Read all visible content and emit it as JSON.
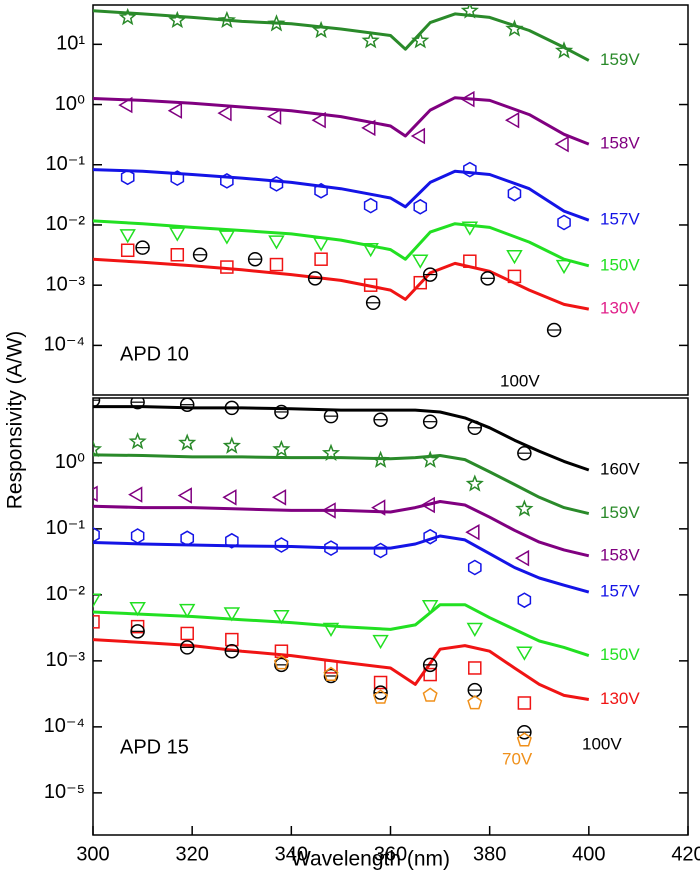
{
  "chart_data": [
    {
      "type": "line",
      "ylabel": "Responsivity (A/W)",
      "xlim": [
        300,
        420
      ],
      "ylim": [
        1.5e-05,
        45
      ],
      "log_y": true,
      "yticks": [
        {
          "value": 0.0001,
          "label": "10⁻⁴"
        },
        {
          "value": 0.001,
          "label": "10⁻³"
        },
        {
          "value": 0.01,
          "label": "10⁻²"
        },
        {
          "value": 0.1,
          "label": "10⁻¹"
        },
        {
          "value": 1,
          "label": "10⁰"
        },
        {
          "value": 10,
          "label": "10¹"
        }
      ],
      "annotation": "APD 10",
      "series": [
        {
          "name": "159V",
          "color": "#2a8a2a",
          "marker": "star",
          "x": [
            300,
            310,
            320,
            330,
            340,
            350,
            360,
            363,
            368,
            373,
            380,
            388,
            395,
            400
          ],
          "values": [
            36,
            32,
            28,
            24,
            22,
            18,
            14,
            8.3,
            23,
            32,
            28,
            17,
            8.9,
            5.4
          ],
          "points_x": [
            307,
            317,
            327,
            337,
            346,
            356,
            366,
            376,
            385,
            395
          ],
          "points": [
            28,
            25,
            25,
            22,
            17,
            11.5,
            11.5,
            36,
            18,
            7.8
          ]
        },
        {
          "name": "158V",
          "color": "#800080",
          "marker": "tri-left",
          "x": [
            300,
            310,
            320,
            330,
            340,
            350,
            360,
            363,
            368,
            373,
            380,
            388,
            395,
            400
          ],
          "values": [
            1.26,
            1.17,
            1.05,
            0.91,
            0.79,
            0.63,
            0.44,
            0.3,
            0.81,
            1.3,
            1.17,
            0.68,
            0.32,
            0.22
          ],
          "points_x": [
            307,
            317,
            327,
            337,
            346,
            356,
            366,
            376,
            385,
            395
          ],
          "points": [
            0.98,
            0.79,
            0.72,
            0.63,
            0.55,
            0.41,
            0.3,
            1.23,
            0.55,
            0.22
          ]
        },
        {
          "name": "157V",
          "color": "#1414e6",
          "marker": "hexagon",
          "x": [
            300,
            310,
            320,
            330,
            340,
            350,
            360,
            363,
            368,
            373,
            380,
            388,
            395,
            400
          ],
          "values": [
            0.083,
            0.078,
            0.069,
            0.06,
            0.051,
            0.04,
            0.028,
            0.02,
            0.051,
            0.078,
            0.069,
            0.04,
            0.017,
            0.012
          ],
          "points_x": [
            307,
            317,
            327,
            337,
            346,
            356,
            366,
            376,
            385,
            395
          ],
          "points": [
            0.062,
            0.06,
            0.054,
            0.048,
            0.037,
            0.021,
            0.02,
            0.083,
            0.033,
            0.011
          ]
        },
        {
          "name": "150V",
          "color": "#22e022",
          "marker": "tri-down",
          "x": [
            300,
            310,
            320,
            330,
            340,
            350,
            360,
            363,
            368,
            373,
            380,
            388,
            395,
            400
          ],
          "values": [
            0.0117,
            0.0105,
            0.0091,
            0.0081,
            0.0071,
            0.0056,
            0.0039,
            0.0027,
            0.0076,
            0.0105,
            0.0091,
            0.0052,
            0.0027,
            0.0021
          ],
          "points_x": [
            307,
            317,
            327,
            337,
            346,
            356,
            366,
            376,
            385,
            395
          ],
          "points": [
            0.0071,
            0.0076,
            0.0068,
            0.0056,
            0.0052,
            0.0042,
            0.0027,
            0.0095,
            0.0032,
            0.0022
          ]
        },
        {
          "name": "130V",
          "color": "#f01414",
          "label_color": "#e0208a",
          "marker": "square",
          "x": [
            300,
            310,
            320,
            330,
            340,
            350,
            360,
            363,
            368,
            373,
            380,
            388,
            395,
            400
          ],
          "values": [
            0.0027,
            0.0024,
            0.0021,
            0.0018,
            0.0015,
            0.0012,
            0.00083,
            0.00058,
            0.0016,
            0.0023,
            0.0017,
            0.00083,
            0.00048,
            0.0004
          ],
          "points_x": [
            307,
            317,
            327,
            337,
            346,
            356,
            366,
            376,
            385
          ],
          "points": [
            0.0038,
            0.0032,
            0.002,
            0.0022,
            0.0027,
            0.001,
            0.0011,
            0.0025,
            0.0014
          ]
        },
        {
          "name": "100V",
          "color": "#000000",
          "marker": "circle",
          "points_x": [
            310,
            321.6,
            332.7,
            344.8,
            356.5,
            368,
            379.6,
            393
          ],
          "points": [
            0.0042,
            0.0032,
            0.0027,
            0.0013,
            0.00051,
            0.0015,
            0.0013,
            0.00018
          ]
        }
      ]
    },
    {
      "type": "line",
      "xlabel": "Wavelength (nm)",
      "xlim": [
        300,
        420
      ],
      "ylim": [
        2.3e-06,
        9.6
      ],
      "log_y": true,
      "xticks": [
        300,
        320,
        340,
        360,
        380,
        400,
        420
      ],
      "yticks": [
        {
          "value": 1e-05,
          "label": "10⁻⁵"
        },
        {
          "value": 0.0001,
          "label": "10⁻⁴"
        },
        {
          "value": 0.001,
          "label": "10⁻³"
        },
        {
          "value": 0.01,
          "label": "10⁻²"
        },
        {
          "value": 0.1,
          "label": "10⁻¹"
        },
        {
          "value": 1,
          "label": "10⁰"
        }
      ],
      "annotation": "APD 15",
      "series": [
        {
          "name": "160V",
          "color": "#000000",
          "marker": "circle",
          "x": [
            300,
            310,
            320,
            330,
            340,
            350,
            360,
            365,
            370,
            375,
            380,
            385,
            390,
            395,
            400
          ],
          "values": [
            7.1,
            7.1,
            6.8,
            6.8,
            6.6,
            6.3,
            6.3,
            6.3,
            5.9,
            4.8,
            3.4,
            2.2,
            1.5,
            1.05,
            0.78
          ],
          "points_x": [
            300,
            309,
            319,
            328,
            338,
            348,
            358,
            368,
            377,
            387
          ],
          "points": [
            8.9,
            8.3,
            7.6,
            6.8,
            5.9,
            5.1,
            4.5,
            4.2,
            3.4,
            1.4
          ]
        },
        {
          "name": "159V",
          "color": "#2a8a2a",
          "marker": "star",
          "x": [
            300,
            310,
            320,
            330,
            340,
            350,
            360,
            365,
            370,
            375,
            380,
            385,
            390,
            395,
            400
          ],
          "values": [
            1.32,
            1.29,
            1.23,
            1.23,
            1.2,
            1.2,
            1.15,
            1.2,
            1.29,
            1.12,
            0.73,
            0.47,
            0.3,
            0.21,
            0.17
          ],
          "points_x": [
            300,
            309,
            319,
            328,
            338,
            348,
            358,
            368,
            377,
            387
          ],
          "points": [
            1.6,
            2.1,
            2.0,
            1.8,
            1.6,
            1.4,
            1.1,
            1.1,
            0.48,
            0.2
          ]
        },
        {
          "name": "158V",
          "color": "#800080",
          "marker": "tri-left",
          "x": [
            300,
            310,
            320,
            330,
            340,
            350,
            360,
            365,
            370,
            375,
            380,
            385,
            390,
            395,
            400
          ],
          "values": [
            0.22,
            0.21,
            0.21,
            0.2,
            0.19,
            0.19,
            0.18,
            0.21,
            0.26,
            0.23,
            0.15,
            0.095,
            0.063,
            0.048,
            0.039
          ],
          "points_x": [
            300,
            309,
            319,
            328,
            338,
            348,
            358,
            368,
            377,
            387
          ],
          "points": [
            0.34,
            0.33,
            0.32,
            0.3,
            0.3,
            0.19,
            0.21,
            0.23,
            0.089,
            0.036
          ]
        },
        {
          "name": "157V",
          "color": "#1414e6",
          "marker": "hexagon",
          "x": [
            300,
            310,
            320,
            330,
            340,
            350,
            360,
            365,
            370,
            375,
            380,
            385,
            390,
            395,
            400
          ],
          "values": [
            0.062,
            0.059,
            0.057,
            0.055,
            0.054,
            0.051,
            0.051,
            0.059,
            0.078,
            0.068,
            0.042,
            0.026,
            0.018,
            0.014,
            0.011
          ],
          "points_x": [
            300,
            309,
            319,
            328,
            338,
            348,
            358,
            368,
            377,
            387
          ],
          "points": [
            0.081,
            0.078,
            0.072,
            0.066,
            0.057,
            0.051,
            0.047,
            0.076,
            0.026,
            0.0083
          ]
        },
        {
          "name": "150V",
          "color": "#22e022",
          "marker": "tri-down",
          "x": [
            300,
            310,
            320,
            330,
            340,
            350,
            360,
            365,
            370,
            375,
            380,
            385,
            390,
            395,
            400
          ],
          "values": [
            0.0055,
            0.0051,
            0.0047,
            0.0042,
            0.0038,
            0.0033,
            0.003,
            0.0035,
            0.0071,
            0.0071,
            0.0045,
            0.003,
            0.002,
            0.0016,
            0.0012
          ],
          "points_x": [
            300,
            309,
            319,
            328,
            338,
            348,
            358,
            368,
            377,
            387
          ],
          "points": [
            0.0089,
            0.0066,
            0.0062,
            0.0055,
            0.005,
            0.0032,
            0.0021,
            0.0071,
            0.0032,
            0.0014
          ]
        },
        {
          "name": "130V",
          "color": "#f01414",
          "marker": "square",
          "x": [
            300,
            310,
            320,
            330,
            340,
            350,
            360,
            365,
            370,
            375,
            380,
            385,
            390,
            395,
            400
          ],
          "values": [
            0.0021,
            0.0019,
            0.0017,
            0.0014,
            0.0012,
            0.00096,
            0.00078,
            0.00044,
            0.0015,
            0.0017,
            0.0014,
            0.00078,
            0.00044,
            0.0003,
            0.00026
          ],
          "points_x": [
            300,
            309,
            319,
            328,
            338,
            348,
            358,
            368,
            377,
            387
          ],
          "points": [
            0.0039,
            0.0033,
            0.0026,
            0.0021,
            0.0014,
            0.00081,
            0.00047,
            0.00062,
            0.00078,
            0.00023
          ]
        },
        {
          "name": "100V",
          "color": "#000000",
          "marker": "circle",
          "points_x": [
            309,
            319,
            328,
            338,
            348,
            358,
            368,
            377,
            387
          ],
          "points": [
            0.0028,
            0.0016,
            0.0014,
            0.00087,
            0.00059,
            0.00033,
            0.00087,
            0.00036,
            8.3e-05
          ]
        },
        {
          "name": "70V",
          "color": "#f0901a",
          "marker": "pentagon",
          "points_x": [
            338,
            348,
            358,
            368,
            377,
            387
          ],
          "points": [
            0.00093,
            0.00062,
            0.00028,
            0.0003,
            0.00023,
            6.3e-05
          ]
        }
      ]
    }
  ]
}
